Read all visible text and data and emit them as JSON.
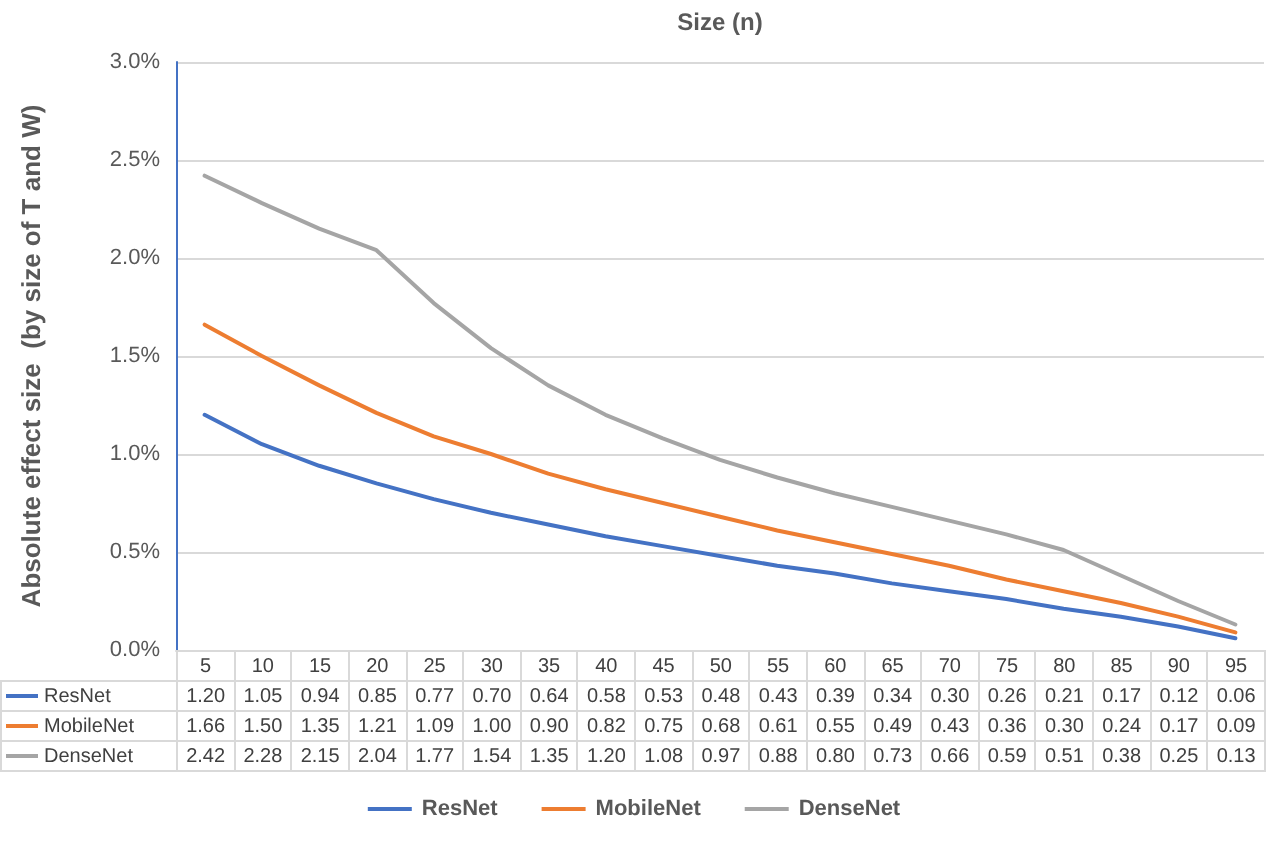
{
  "chart_data": {
    "type": "line",
    "xlabel": "Size (n)",
    "ylabel": "Absolute effect size  (by size of T and W)",
    "categories": [
      "5",
      "10",
      "15",
      "20",
      "25",
      "30",
      "35",
      "40",
      "45",
      "50",
      "55",
      "60",
      "65",
      "70",
      "75",
      "80",
      "85",
      "90",
      "95"
    ],
    "series": [
      {
        "name": "ResNet",
        "color": "#4472c4",
        "values": [
          1.2,
          1.05,
          0.94,
          0.85,
          0.77,
          0.7,
          0.64,
          0.58,
          0.53,
          0.48,
          0.43,
          0.39,
          0.34,
          0.3,
          0.26,
          0.21,
          0.17,
          0.12,
          0.06
        ],
        "value_labels": [
          "1.20",
          "1.05",
          "0.94",
          "0.85",
          "0.77",
          "0.70",
          "0.64",
          "0.58",
          "0.53",
          "0.48",
          "0.43",
          "0.39",
          "0.34",
          "0.30",
          "0.26",
          "0.21",
          "0.17",
          "0.12",
          "0.06"
        ]
      },
      {
        "name": "MobileNet",
        "color": "#ed7d31",
        "values": [
          1.66,
          1.5,
          1.35,
          1.21,
          1.09,
          1.0,
          0.9,
          0.82,
          0.75,
          0.68,
          0.61,
          0.55,
          0.49,
          0.43,
          0.36,
          0.3,
          0.24,
          0.17,
          0.09
        ],
        "value_labels": [
          "1.66",
          "1.50",
          "1.35",
          "1.21",
          "1.09",
          "1.00",
          "0.90",
          "0.82",
          "0.75",
          "0.68",
          "0.61",
          "0.55",
          "0.49",
          "0.43",
          "0.36",
          "0.30",
          "0.24",
          "0.17",
          "0.09"
        ]
      },
      {
        "name": "DenseNet",
        "color": "#a5a5a5",
        "values": [
          2.42,
          2.28,
          2.15,
          2.04,
          1.77,
          1.54,
          1.35,
          1.2,
          1.08,
          0.97,
          0.88,
          0.8,
          0.73,
          0.66,
          0.59,
          0.51,
          0.38,
          0.25,
          0.13
        ],
        "value_labels": [
          "2.42",
          "2.28",
          "2.15",
          "2.04",
          "1.77",
          "1.54",
          "1.35",
          "1.20",
          "1.08",
          "0.97",
          "0.88",
          "0.80",
          "0.73",
          "0.66",
          "0.59",
          "0.51",
          "0.38",
          "0.25",
          "0.13"
        ]
      }
    ],
    "ylim": [
      0,
      3
    ],
    "yticks": [
      {
        "value": 0,
        "label": "0.0%"
      },
      {
        "value": 0.5,
        "label": "0.5%"
      },
      {
        "value": 1,
        "label": "1.0%"
      },
      {
        "value": 1.5,
        "label": "1.5%"
      },
      {
        "value": 2,
        "label": "2.0%"
      },
      {
        "value": 2.5,
        "label": "2.5%"
      },
      {
        "value": 3,
        "label": "3.0%"
      }
    ],
    "grid": "y",
    "legend": "bottom",
    "marker": "none",
    "line_style": "solid"
  }
}
